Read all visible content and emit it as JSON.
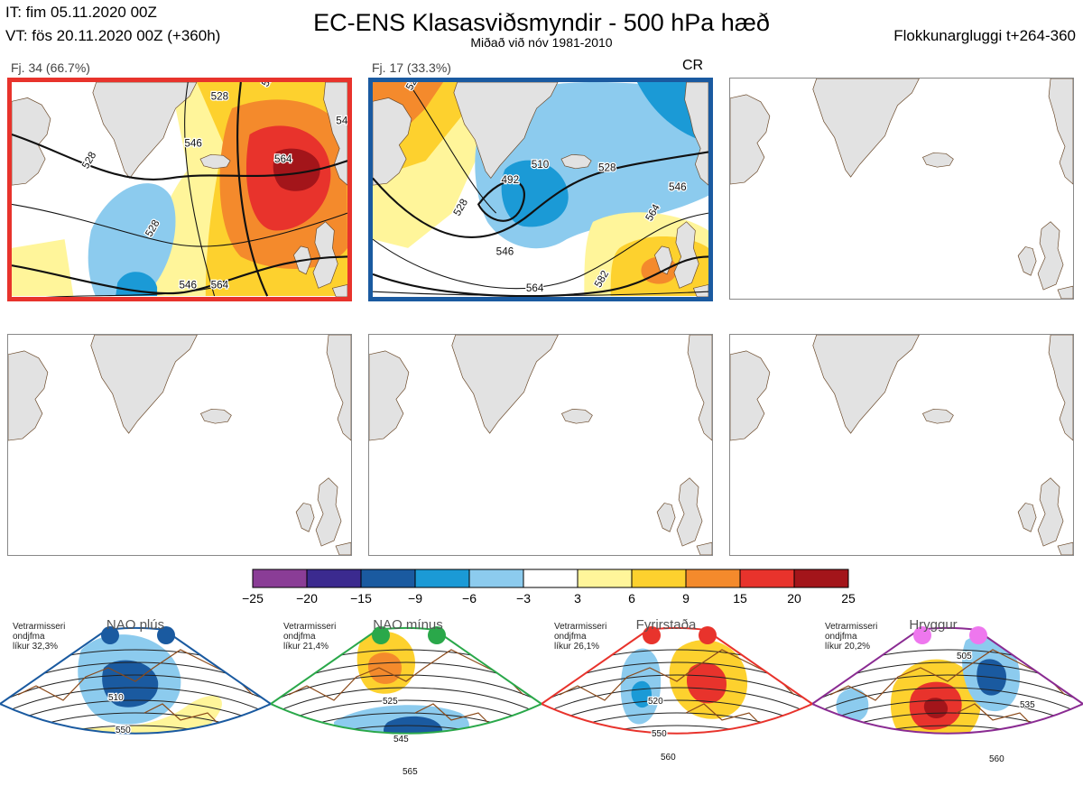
{
  "header": {
    "initial_time": "IT: fim 05.11.2020 00Z",
    "valid_time": "VT: fös 20.11.2020 00Z  (+360h)",
    "title": "EC-ENS Klasasviðsmyndir - 500 hPa hæð",
    "subtitle": "Miðað við nóv 1981-2010",
    "cluster_window": "Flokkunargluggi t+264-360"
  },
  "clusters": [
    {
      "label": "Fj. 34 (66.7%)",
      "border_color": "#e8332c",
      "contours": [
        "528",
        "528",
        "546",
        "528",
        "564",
        "546",
        "528",
        "546",
        "564"
      ]
    },
    {
      "label": "Fj. 17 (33.3%)",
      "tag": "CR",
      "border_color": "#1a5aa0",
      "contours": [
        "528",
        "492",
        "510",
        "528",
        "546",
        "528",
        "564",
        "546",
        "564",
        "582"
      ]
    },
    {
      "label": ""
    },
    {
      "label": ""
    },
    {
      "label": ""
    },
    {
      "label": ""
    }
  ],
  "colorbar": {
    "ticks": [
      "−25",
      "−20",
      "−15",
      "−9",
      "−6",
      "−3",
      "3",
      "6",
      "9",
      "15",
      "20",
      "25"
    ],
    "colors": [
      "#8a3d96",
      "#3b2a8f",
      "#1a5aa0",
      "#1b9ad6",
      "#8ccbee",
      "#ffffff",
      "#fff59a",
      "#fdd12e",
      "#f48a2c",
      "#e8332c",
      "#a3151a"
    ]
  },
  "regimes": [
    {
      "name": "NAO plús",
      "info": [
        "Vetrarmisseri",
        "ondjfma",
        "líkur 32,3%"
      ],
      "color": "#1a5aa0",
      "dot_color": "#1a5aa0",
      "contours": [
        "510",
        "550"
      ]
    },
    {
      "name": "NAO mínus",
      "info": [
        "Vetrarmisseri",
        "ondjfma",
        "líkur 21,4%"
      ],
      "color": "#2aa84a",
      "dot_color": "#2aa84a",
      "contours": [
        "525",
        "545",
        "565"
      ]
    },
    {
      "name": "Fyrirstaða",
      "info": [
        "Vetrarmisseri",
        "ondjfma",
        "líkur 26,1%"
      ],
      "color": "#e8332c",
      "dot_color": "#e8332c",
      "contours": [
        "520",
        "550",
        "560"
      ]
    },
    {
      "name": "Hryggur",
      "info": [
        "Vetrarmisseri",
        "ondjfma",
        "líkur 20,2%"
      ],
      "color": "#8a2b92",
      "dot_color": "#ee77ee",
      "contours": [
        "505",
        "535",
        "560"
      ]
    }
  ]
}
